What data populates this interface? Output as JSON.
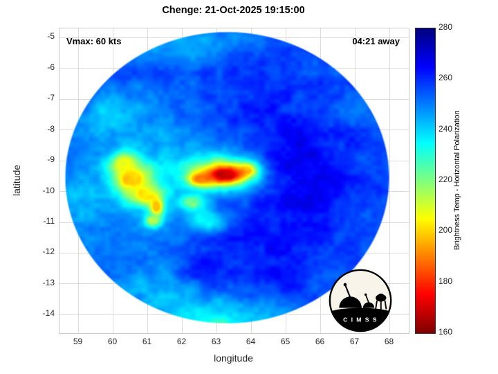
{
  "title": "Chenge: 21-Oct-2025 19:15:00",
  "annotations": {
    "vmax": "Vmax: 60 kts",
    "eta": "04:21 away"
  },
  "axes": {
    "xlabel": "longitude",
    "ylabel": "latitude",
    "xticks": [
      59,
      60,
      61,
      62,
      63,
      64,
      65,
      66,
      67,
      68
    ],
    "yticks": [
      -5,
      -6,
      -7,
      -8,
      -9,
      -10,
      -11,
      -12,
      -13,
      -14
    ],
    "xlim": [
      58.45,
      68.55
    ],
    "ylim": [
      -14.6,
      -4.7
    ]
  },
  "colorbar": {
    "label": "Brightness Temp - Horizontal Polarization",
    "ticks": [
      160,
      180,
      200,
      220,
      240,
      260,
      280
    ],
    "min": 160,
    "max": 280,
    "colormap": "jet-reversed"
  },
  "logo": {
    "text": "C I M S S"
  },
  "chart_data": {
    "type": "heatmap",
    "storm_name": "Chenge",
    "timestamp": "21-Oct-2025 19:15:00",
    "vmax_kts": 60,
    "time_to_arrival": "04:21",
    "title": "Chenge: 21-Oct-2025 19:15:00",
    "xlabel": "longitude",
    "ylabel": "latitude",
    "value_label": "Brightness Temp - Horizontal Polarization (K)",
    "value_range": [
      160,
      280
    ],
    "swath": {
      "center_lon": 63.3,
      "center_lat": -9.55,
      "radius_lon": 4.7,
      "radius_lat": 4.75
    },
    "background_temp_k": 255,
    "features": [
      {
        "name": "west-mottled-cool",
        "lon": 61.0,
        "lat": -9.6,
        "rx": 1.9,
        "ry": 1.8,
        "temp": 243
      },
      {
        "name": "nw-rim-cyan",
        "lon": 60.1,
        "lat": -7.6,
        "rx": 0.9,
        "ry": 0.8,
        "temp": 241
      },
      {
        "name": "west-rim-cyan",
        "lon": 59.15,
        "lat": -10.3,
        "rx": 0.7,
        "ry": 1.1,
        "temp": 244
      },
      {
        "name": "north-rim-cyan",
        "lon": 62.3,
        "lat": -5.25,
        "rx": 1.5,
        "ry": 0.55,
        "temp": 246
      },
      {
        "name": "ne-light-patch",
        "lon": 66.6,
        "lat": -7.2,
        "rx": 0.9,
        "ry": 0.7,
        "temp": 251
      },
      {
        "name": "south-rim-cyan-west",
        "lon": 61.5,
        "lat": -13.2,
        "rx": 1.4,
        "ry": 0.9,
        "temp": 243
      },
      {
        "name": "south-rim-cyan",
        "lon": 63.3,
        "lat": -13.9,
        "rx": 1.7,
        "ry": 0.6,
        "temp": 240
      },
      {
        "name": "south-rim-green",
        "lon": 62.9,
        "lat": -14.35,
        "rx": 1.0,
        "ry": 0.35,
        "temp": 231
      },
      {
        "name": "east-dark-blue",
        "lon": 65.3,
        "lat": -9.4,
        "rx": 1.6,
        "ry": 2.2,
        "temp": 266
      },
      {
        "name": "se-dark-blue",
        "lon": 64.6,
        "lat": -12.0,
        "rx": 1.3,
        "ry": 1.2,
        "temp": 263
      },
      {
        "name": "south-center-dark",
        "lon": 62.9,
        "lat": -12.3,
        "rx": 1.0,
        "ry": 0.8,
        "temp": 261
      },
      {
        "name": "north-dark",
        "lon": 64.0,
        "lat": -6.6,
        "rx": 1.3,
        "ry": 1.0,
        "temp": 260
      },
      {
        "name": "convection-halo",
        "lon": 63.1,
        "lat": -9.4,
        "rx": 1.05,
        "ry": 0.6,
        "temp": 216
      },
      {
        "name": "cyan-patch-south",
        "lon": 62.7,
        "lat": -10.9,
        "rx": 0.5,
        "ry": 0.4,
        "temp": 237
      },
      {
        "name": "green-dot",
        "lon": 62.3,
        "lat": -10.35,
        "rx": 0.3,
        "ry": 0.25,
        "temp": 224
      },
      {
        "name": "west-yellow-a",
        "lon": 60.55,
        "lat": -9.55,
        "rx": 0.55,
        "ry": 0.5,
        "temp": 199
      },
      {
        "name": "west-yellow-b",
        "lon": 60.3,
        "lat": -9.1,
        "rx": 0.4,
        "ry": 0.35,
        "temp": 208
      },
      {
        "name": "west-orange",
        "lon": 60.95,
        "lat": -10.1,
        "rx": 0.45,
        "ry": 0.35,
        "temp": 203
      },
      {
        "name": "south-orange-dot",
        "lon": 61.25,
        "lat": -10.5,
        "rx": 0.2,
        "ry": 0.32,
        "temp": 197
      },
      {
        "name": "south-orange-dot-2",
        "lon": 61.15,
        "lat": -10.95,
        "rx": 0.22,
        "ry": 0.22,
        "temp": 213
      },
      {
        "name": "yellow-dot-east",
        "lon": 63.85,
        "lat": -9.3,
        "rx": 0.28,
        "ry": 0.22,
        "temp": 204
      },
      {
        "name": "convection-tail",
        "lon": 62.55,
        "lat": -9.6,
        "rx": 0.35,
        "ry": 0.22,
        "temp": 194
      },
      {
        "name": "convection-core-red",
        "lon": 63.25,
        "lat": -9.45,
        "rx": 0.55,
        "ry": 0.27,
        "temp": 170
      }
    ],
    "noise": {
      "octaves": [
        {
          "scale": 2.6,
          "amp": 3.5
        },
        {
          "scale": 6.5,
          "amp": 2.2
        }
      ]
    }
  }
}
